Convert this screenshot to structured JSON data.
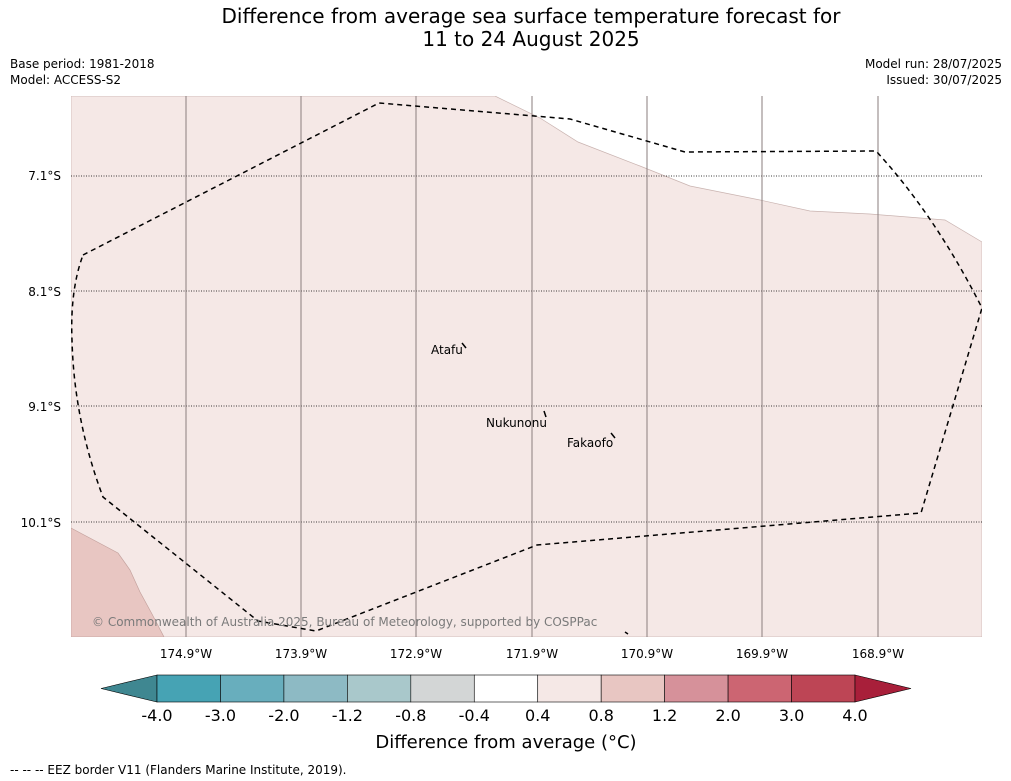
{
  "title_line1": "Difference from average sea surface temperature forecast for",
  "title_line2": "11 to 24 August 2025",
  "base_period": "Base period: 1981-2018",
  "model": "Model: ACCESS-S2",
  "model_run": "Model run: 28/07/2025",
  "issued": "Issued: 30/07/2025",
  "latitudes": [
    "7.1°S",
    "8.1°S",
    "9.1°S",
    "10.1°S"
  ],
  "longitudes": [
    "174.9°W",
    "173.9°W",
    "172.9°W",
    "171.9°W",
    "170.9°W",
    "169.9°W",
    "168.9°W"
  ],
  "places": [
    {
      "name": "Atafu"
    },
    {
      "name": "Nukunonu"
    },
    {
      "name": "Fakaofo"
    }
  ],
  "copyright": "© Commonwealth of Australia 2025, Bureau of Meteorology, supported by COSPPac",
  "colorbar": {
    "ticks": [
      "-4.0",
      "-3.0",
      "-2.0",
      "-1.2",
      "-0.8",
      "-0.4",
      "0.4",
      "0.8",
      "1.2",
      "2.0",
      "3.0",
      "4.0"
    ],
    "colors": [
      "#3f8791",
      "#46a3b4",
      "#68aebd",
      "#8dbac4",
      "#a9c8cb",
      "#d3d6d6",
      "#ffffff",
      "#f5e8e6",
      "#e8c6c2",
      "#d6919a",
      "#cc6572",
      "#bd4555",
      "#a81f3a"
    ],
    "label": "Difference from average (°C)"
  },
  "legend_note": "--  --  -- EEZ border V11 (Flanders Marine Institute, 2019).",
  "colors": {
    "light_anomaly": "#f5e8e6",
    "medium_anomaly": "#e8c6c2",
    "neutral": "#ffffff"
  }
}
